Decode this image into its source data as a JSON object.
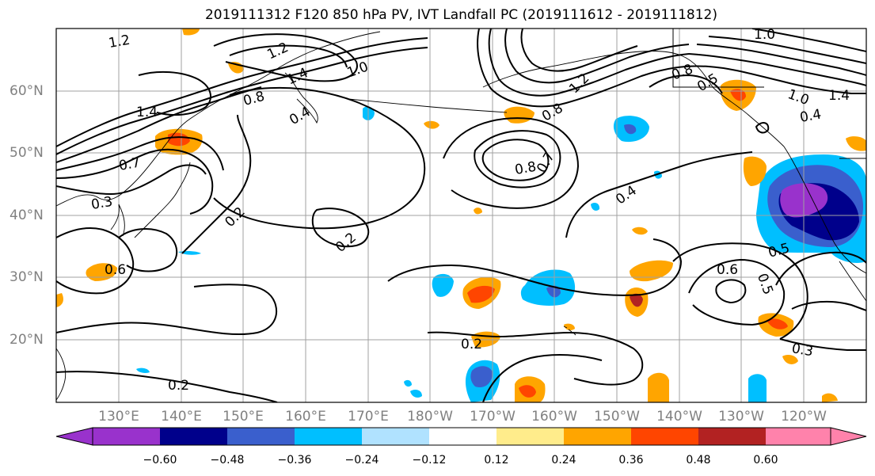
{
  "title": "2019111312 F120 850 hPa PV, IVT Landfall PC (2019111612 - 2019111812)",
  "lat_labels": [
    "60°N",
    "50°N",
    "40°N",
    "30°N",
    "20°N"
  ],
  "lon_labels": [
    "130°E",
    "140°E",
    "150°E",
    "160°E",
    "170°E",
    "180°W",
    "170°W",
    "160°W",
    "150°W",
    "140°W",
    "130°W",
    "120°W"
  ],
  "colorbar": {
    "tick_labels": [
      "−0.60",
      "−0.48",
      "−0.36",
      "−0.24",
      "−0.12",
      "0.12",
      "0.24",
      "0.36",
      "0.48",
      "0.60"
    ],
    "colors": [
      "#9932CC",
      "#00008B",
      "#3A5FCD",
      "#00BFFF",
      "#B0E2FF",
      "#FFFFFF",
      "#FFEC8B",
      "#FFA500",
      "#FF4500",
      "#B22222",
      "#FF82AB"
    ]
  },
  "contour_labels": [
    "1.2",
    "1.2",
    "1.4",
    "1.0",
    "0.8",
    "0.4",
    "1.4",
    "0.7",
    "0.3",
    "0.6",
    "0.2",
    "0.2",
    "0.2",
    "0.8",
    "0.7",
    "1.2",
    "0.8",
    "0.4",
    "0.6",
    "0.5",
    "0.5",
    "0.3",
    "1.0",
    "0.8",
    "0.5",
    "1.0",
    "0.4",
    "1.4",
    "0.2"
  ]
}
